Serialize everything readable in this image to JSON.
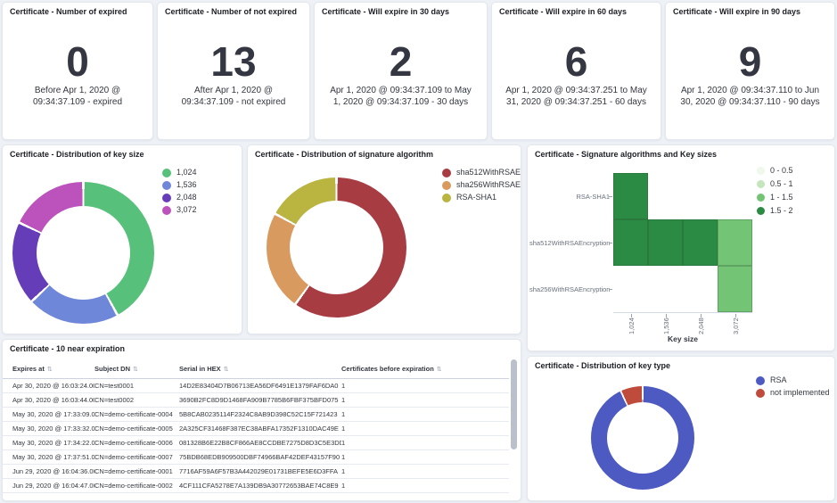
{
  "colors": {
    "page_bg": "#eef1f6",
    "panel_bg": "#ffffff",
    "title_text": "#1c1e24",
    "body_text": "#343741",
    "axis_text": "#69707d"
  },
  "metrics": [
    {
      "title": "Certificate - Number of expired",
      "value": "0",
      "caption": "Before Apr 1, 2020 @ 09:34:37.109 - expired"
    },
    {
      "title": "Certificate - Number of not expired",
      "value": "13",
      "caption": "After Apr 1, 2020 @ 09:34:37.109 - not expired"
    },
    {
      "title": "Certificate - Will expire in 30 days",
      "value": "2",
      "caption": "Apr 1, 2020 @ 09:34:37.109 to May 1, 2020 @ 09:34:37.109 - 30 days"
    },
    {
      "title": "Certificate - Will expire in 60 days",
      "value": "6",
      "caption": "Apr 1, 2020 @ 09:34:37.251 to May 31, 2020 @ 09:34:37.251 - 60 days"
    },
    {
      "title": "Certificate - Will expire in 90 days",
      "value": "9",
      "caption": "Apr 1, 2020 @ 09:34:37.110 to Jun 30, 2020 @ 09:34:37.110 - 90 days"
    }
  ],
  "panels": {
    "key_size": {
      "title": "Certificate - Distribution of key size"
    },
    "signature": {
      "title": "Certificate - Distribution of signature algorithm"
    },
    "heatmap": {
      "title": "Certificate - Signature algorithms and Key sizes",
      "xlabel": "Key size"
    },
    "table": {
      "title": "Certificate - 10 near expiration"
    },
    "key_type": {
      "title": "Certificate - Distribution of key type"
    }
  },
  "chart_data": [
    {
      "id": "key_size",
      "type": "pie",
      "donut": true,
      "title": "Certificate - Distribution of key size",
      "labels": [
        "1,024",
        "1,536",
        "2,048",
        "3,072"
      ],
      "values_percent": [
        42,
        21,
        19,
        18
      ],
      "colors": [
        "#57c17b",
        "#6f87d8",
        "#663db8",
        "#bc52bc"
      ],
      "legend_position": "top-right"
    },
    {
      "id": "signature",
      "type": "pie",
      "donut": true,
      "title": "Certificate - Distribution of signature algorithm",
      "labels": [
        "sha512WithRSAEncr...",
        "sha256WithRSAEnc...",
        "RSA-SHA1"
      ],
      "values_percent": [
        60,
        23,
        17
      ],
      "colors": [
        "#a83c43",
        "#d89a5e",
        "#bab441"
      ],
      "legend_position": "top-right"
    },
    {
      "id": "sig_key_heatmap",
      "type": "heatmap",
      "title": "Certificate - Signature algorithms and Key sizes",
      "x_categories": [
        "1,024",
        "1,536",
        "2,048",
        "3,072"
      ],
      "y_categories": [
        "RSA-SHA1",
        "sha512WithRSAEncryption",
        "sha256WithRSAEncryption"
      ],
      "values": [
        [
          2,
          null,
          null,
          null
        ],
        [
          2,
          2,
          2,
          1
        ],
        [
          null,
          null,
          null,
          1
        ]
      ],
      "xlabel": "Key size",
      "value_range": [
        0,
        2
      ],
      "legend": [
        {
          "label": "0 - 0.5",
          "color": "#eff8eb"
        },
        {
          "label": "0.5 - 1",
          "color": "#c5e5bd"
        },
        {
          "label": "1 - 1.5",
          "color": "#74c476"
        },
        {
          "label": "1.5 - 2",
          "color": "#2b8a43"
        }
      ],
      "legend_position": "top-right"
    },
    {
      "id": "near_expiration",
      "type": "table",
      "title": "Certificate - 10 near expiration",
      "columns": [
        "Expires at",
        "Subject DN",
        "Serial in HEX",
        "Certificates before expiration"
      ],
      "rows": [
        [
          "Apr 30, 2020 @ 16:03:24.000",
          "CN=test0001",
          "14D2E83404D7B06713EA56DF6491E1379FAF6DA0",
          "1"
        ],
        [
          "Apr 30, 2020 @ 16:03:44.000",
          "CN=test0002",
          "3690B2FC8D9D1468FA909B7785B6FBF375BFD075",
          "1"
        ],
        [
          "May 30, 2020 @ 17:33:09.000",
          "CN=demo-certificate-0004",
          "5B8CAB0235114F2324C8AB9D398C52C15F721423",
          "1"
        ],
        [
          "May 30, 2020 @ 17:33:32.000",
          "CN=demo-certificate-0005",
          "2A325CF31468F387EC38ABFA17352F1310DAC49E",
          "1"
        ],
        [
          "May 30, 2020 @ 17:34:22.000",
          "CN=demo-certificate-0006",
          "081328B6E22B8CF866AE8CCDBE7275D8D3C5E3DD",
          "1"
        ],
        [
          "May 30, 2020 @ 17:37:51.000",
          "CN=demo-certificate-0007",
          "75BDB68EDB909500DBF74966BAF42DEF43157F90",
          "1"
        ],
        [
          "Jun 29, 2020 @ 16:04:36.000",
          "CN=demo-certificate-0001",
          "7716AF59A6F57B3A442029E01731BEFE5E6D3FFA",
          "1"
        ],
        [
          "Jun 29, 2020 @ 16:04:47.000",
          "CN=demo-certificate-0002",
          "4CF111CFA5278E7A139DB9A30772653BAE74C8E9",
          "1"
        ]
      ]
    },
    {
      "id": "key_type",
      "type": "pie",
      "donut": true,
      "title": "Certificate - Distribution of key type",
      "labels": [
        "RSA",
        "not implemented"
      ],
      "values_percent": [
        93,
        7
      ],
      "colors": [
        "#4c5ac1",
        "#bf4b3d"
      ],
      "legend_position": "top-right"
    }
  ]
}
